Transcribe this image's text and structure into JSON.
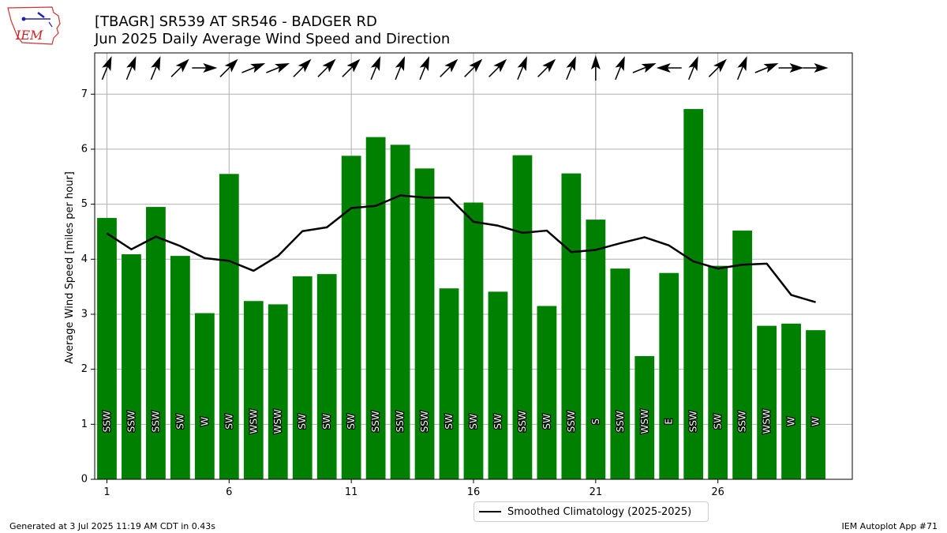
{
  "header": {
    "title_line1": "[TBAGR] SR539 AT SR546 - BADGER RD",
    "title_line2": "Jun 2025 Daily Average Wind Speed and Direction"
  },
  "logo": {
    "text": "IEM"
  },
  "footer": {
    "left": "Generated at 3 Jul 2025 11:19 AM CDT in 0.43s",
    "right": "IEM Autoplot App #71"
  },
  "legend": {
    "label": "Smoothed Climatology (2025-2025)"
  },
  "colors": {
    "bar": "#008000",
    "line": "#000000",
    "grid": "#b0b0b0"
  },
  "chart_data": {
    "type": "bar",
    "ylabel": "Average Wind Speed [miles per hour]",
    "xlim": [
      0.5,
      31.5
    ],
    "ylim": [
      0,
      7.75
    ],
    "xticks": [
      1,
      6,
      11,
      16,
      21,
      26
    ],
    "yticks": [
      0,
      1,
      2,
      3,
      4,
      5,
      6,
      7
    ],
    "grid": true,
    "legend_position": "bottom-center",
    "days": [
      1,
      2,
      3,
      4,
      5,
      6,
      7,
      8,
      9,
      10,
      11,
      12,
      13,
      14,
      15,
      16,
      17,
      18,
      19,
      20,
      21,
      22,
      23,
      24,
      25,
      26,
      27,
      28,
      29,
      30
    ],
    "series": [
      {
        "type": "bar",
        "values": [
          4.75,
          4.09,
          4.95,
          4.06,
          3.02,
          5.55,
          3.24,
          3.18,
          3.69,
          3.73,
          5.88,
          6.22,
          6.08,
          5.65,
          3.47,
          5.03,
          3.41,
          5.89,
          3.15,
          5.56,
          4.72,
          3.83,
          2.24,
          3.75,
          6.73,
          3.88,
          4.52,
          2.79,
          2.83,
          2.71
        ]
      },
      {
        "type": "line",
        "name": "Smoothed Climatology (2025-2025)",
        "values": [
          4.47,
          4.18,
          4.41,
          4.24,
          4.02,
          3.97,
          3.79,
          4.06,
          4.51,
          4.58,
          4.93,
          4.97,
          5.16,
          5.12,
          5.12,
          4.68,
          4.61,
          4.48,
          4.52,
          4.13,
          4.17,
          4.29,
          4.4,
          4.25,
          3.96,
          3.83,
          3.9,
          3.92,
          3.35,
          3.22
        ]
      }
    ],
    "direction_labels": [
      "SSW",
      "SSW",
      "SSW",
      "SW",
      "W",
      "SW",
      "WSW",
      "WSW",
      "SW",
      "SW",
      "SW",
      "SSW",
      "SSW",
      "SSW",
      "SW",
      "SW",
      "SW",
      "SSW",
      "SW",
      "SSW",
      "S",
      "SSW",
      "WSW",
      "E",
      "SSW",
      "SW",
      "SSW",
      "WSW",
      "W",
      "W"
    ],
    "direction_degrees": [
      202,
      202,
      202,
      225,
      270,
      225,
      248,
      248,
      225,
      225,
      225,
      202,
      202,
      202,
      225,
      225,
      225,
      202,
      225,
      202,
      180,
      202,
      248,
      90,
      202,
      225,
      202,
      248,
      270,
      270
    ]
  }
}
